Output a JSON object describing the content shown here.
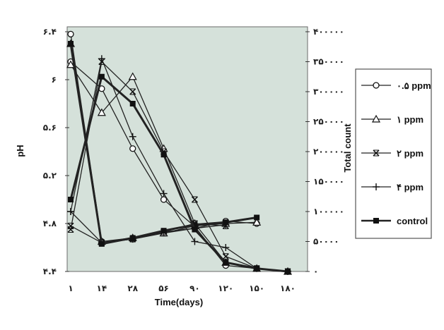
{
  "chart_data": {
    "type": "line",
    "xlabel": "Time(days)",
    "ylabel_left": "pH",
    "ylabel_right": "Total count",
    "x_tick_labels": [
      "١",
      "١۴",
      "٢٨",
      "۵۶",
      "٩٠",
      "١٢٠",
      "١۵٠",
      "١٨٠"
    ],
    "y_left_tick_labels": [
      "۴.۴",
      "۴.٨",
      "۵.٢",
      "۵.۶",
      "۶",
      "۶.۴"
    ],
    "y_left_ticks": [
      4.4,
      4.8,
      5.2,
      5.6,
      6.0,
      6.4
    ],
    "y_left_lim": [
      4.4,
      6.4
    ],
    "y_right_tick_labels": [
      "٠",
      "۵٠٠٠٠",
      "١٠٠٠٠٠",
      "١۵٠٠٠٠",
      "٢٠٠٠٠٠",
      "٢۵٠٠٠٠",
      "٣٠٠٠٠٠",
      "٣۵٠٠٠٠",
      "۴٠٠٠٠٠"
    ],
    "y_right_ticks": [
      0,
      50000,
      100000,
      150000,
      200000,
      250000,
      300000,
      350000,
      400000
    ],
    "y_right_lim": [
      0,
      400000
    ],
    "grid": false,
    "legend_position": "right",
    "series": [
      {
        "name": "٠.۵ ppm",
        "marker": "circle",
        "axis": "left",
        "values": [
          6.38,
          4.65,
          4.67,
          4.72,
          4.76,
          4.82,
          4.8,
          null
        ]
      },
      {
        "name": "٠.۵ ppm",
        "marker": "circle",
        "axis": "right",
        "values": [
          350000,
          305000,
          205000,
          120000,
          75000,
          10000,
          5000,
          0
        ]
      },
      {
        "name": "١ ppm",
        "marker": "triangle",
        "axis": "left",
        "values": [
          6.3,
          4.65,
          4.68,
          4.72,
          4.78,
          4.8,
          4.81,
          null
        ]
      },
      {
        "name": "١ ppm",
        "marker": "triangle",
        "axis": "right",
        "values": [
          345000,
          265000,
          325000,
          205000,
          80000,
          15000,
          5000,
          0
        ]
      },
      {
        "name": "٢ ppm",
        "marker": "x",
        "axis": "left",
        "values": [
          4.78,
          4.64,
          4.67,
          4.73,
          4.8,
          4.78,
          null,
          null
        ]
      },
      {
        "name": "٢ ppm",
        "marker": "x",
        "axis": "right",
        "values": [
          70000,
          350000,
          300000,
          200000,
          120000,
          25000,
          5000,
          0
        ]
      },
      {
        "name": "۴ ppm",
        "marker": "plus",
        "axis": "left",
        "values": [
          4.9,
          4.64,
          4.67,
          4.73,
          4.76,
          4.79,
          null,
          null
        ]
      },
      {
        "name": "۴ ppm",
        "marker": "plus",
        "axis": "right",
        "values": [
          100000,
          355000,
          225000,
          130000,
          50000,
          40000,
          5000,
          0
        ]
      },
      {
        "name": "control",
        "marker": "square",
        "axis": "left",
        "values": [
          6.3,
          4.63,
          4.68,
          4.74,
          4.79,
          4.81,
          4.85,
          null
        ]
      },
      {
        "name": "control",
        "marker": "square",
        "axis": "right",
        "values": [
          120000,
          325000,
          280000,
          195000,
          70000,
          15000,
          5000,
          0
        ]
      }
    ]
  }
}
